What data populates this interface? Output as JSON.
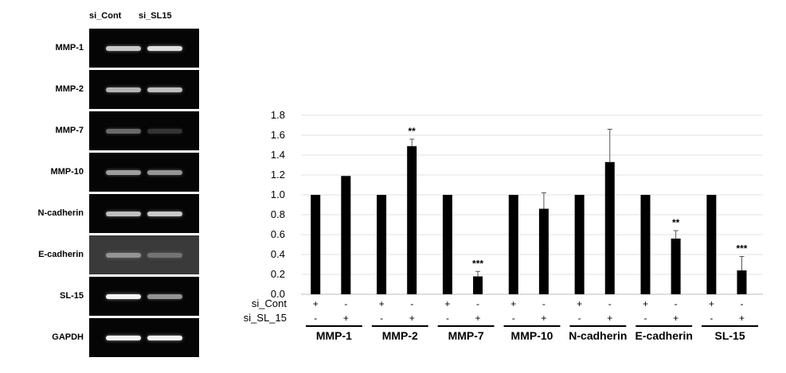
{
  "gel": {
    "lane_headers": [
      "si_Cont",
      "si_SL15"
    ],
    "rows": [
      {
        "label": "MMP-1",
        "bands": [
          0.75,
          0.85
        ],
        "panel": "dark"
      },
      {
        "label": "MMP-2",
        "bands": [
          0.65,
          0.7
        ],
        "panel": "dark"
      },
      {
        "label": "MMP-7",
        "bands": [
          0.3,
          0.05
        ],
        "panel": "dark"
      },
      {
        "label": "MMP-10",
        "bands": [
          0.55,
          0.5
        ],
        "panel": "dark"
      },
      {
        "label": "N-cadherin",
        "bands": [
          0.7,
          0.75
        ],
        "panel": "dark"
      },
      {
        "label": "E-cadherin",
        "bands": [
          0.5,
          0.35
        ],
        "panel": "light"
      },
      {
        "label": "SL-15",
        "bands": [
          0.95,
          0.5
        ],
        "panel": "dark"
      },
      {
        "label": "GAPDH",
        "bands": [
          0.95,
          0.95
        ],
        "panel": "dark"
      }
    ]
  },
  "chart_data": {
    "type": "bar",
    "categories": [
      "MMP-1",
      "MMP-2",
      "MMP-7",
      "MMP-10",
      "N-cadherin",
      "E-cadherin",
      "SL-15"
    ],
    "yticks": [
      "0.0",
      "0.2",
      "0.4",
      "0.6",
      "0.8",
      "1.0",
      "1.2",
      "1.4",
      "1.6",
      "1.8"
    ],
    "ylim": [
      0,
      1.8
    ],
    "grid": true,
    "series": [
      {
        "name": "si_Cont",
        "signs": [
          "+",
          "+",
          "+",
          "+",
          "+",
          "+",
          "+"
        ],
        "values": [
          1.0,
          1.0,
          1.0,
          1.0,
          1.0,
          1.0,
          1.0
        ]
      },
      {
        "name": "si_SL_15",
        "signs": [
          "+",
          "+",
          "+",
          "+",
          "+",
          "+",
          "+"
        ],
        "values": [
          1.19,
          1.49,
          0.18,
          0.86,
          1.33,
          0.56,
          0.24
        ],
        "errors": [
          0.0,
          0.07,
          0.05,
          0.16,
          0.33,
          0.08,
          0.14
        ],
        "annotations": [
          "",
          "**",
          "***",
          "",
          "",
          "**",
          "***"
        ]
      }
    ],
    "row_signs": {
      "si_Cont": [
        "+",
        "-",
        "+",
        "-",
        "+",
        "-",
        "+",
        "-",
        "+",
        "-",
        "+",
        "-",
        "+",
        "-"
      ],
      "si_SL_15": [
        "-",
        "+",
        "-",
        "+",
        "-",
        "+",
        "-",
        "+",
        "-",
        "+",
        "-",
        "+",
        "-",
        "+"
      ]
    },
    "colors": {
      "bar": "#000000",
      "grid": "#e0e0e0"
    }
  }
}
